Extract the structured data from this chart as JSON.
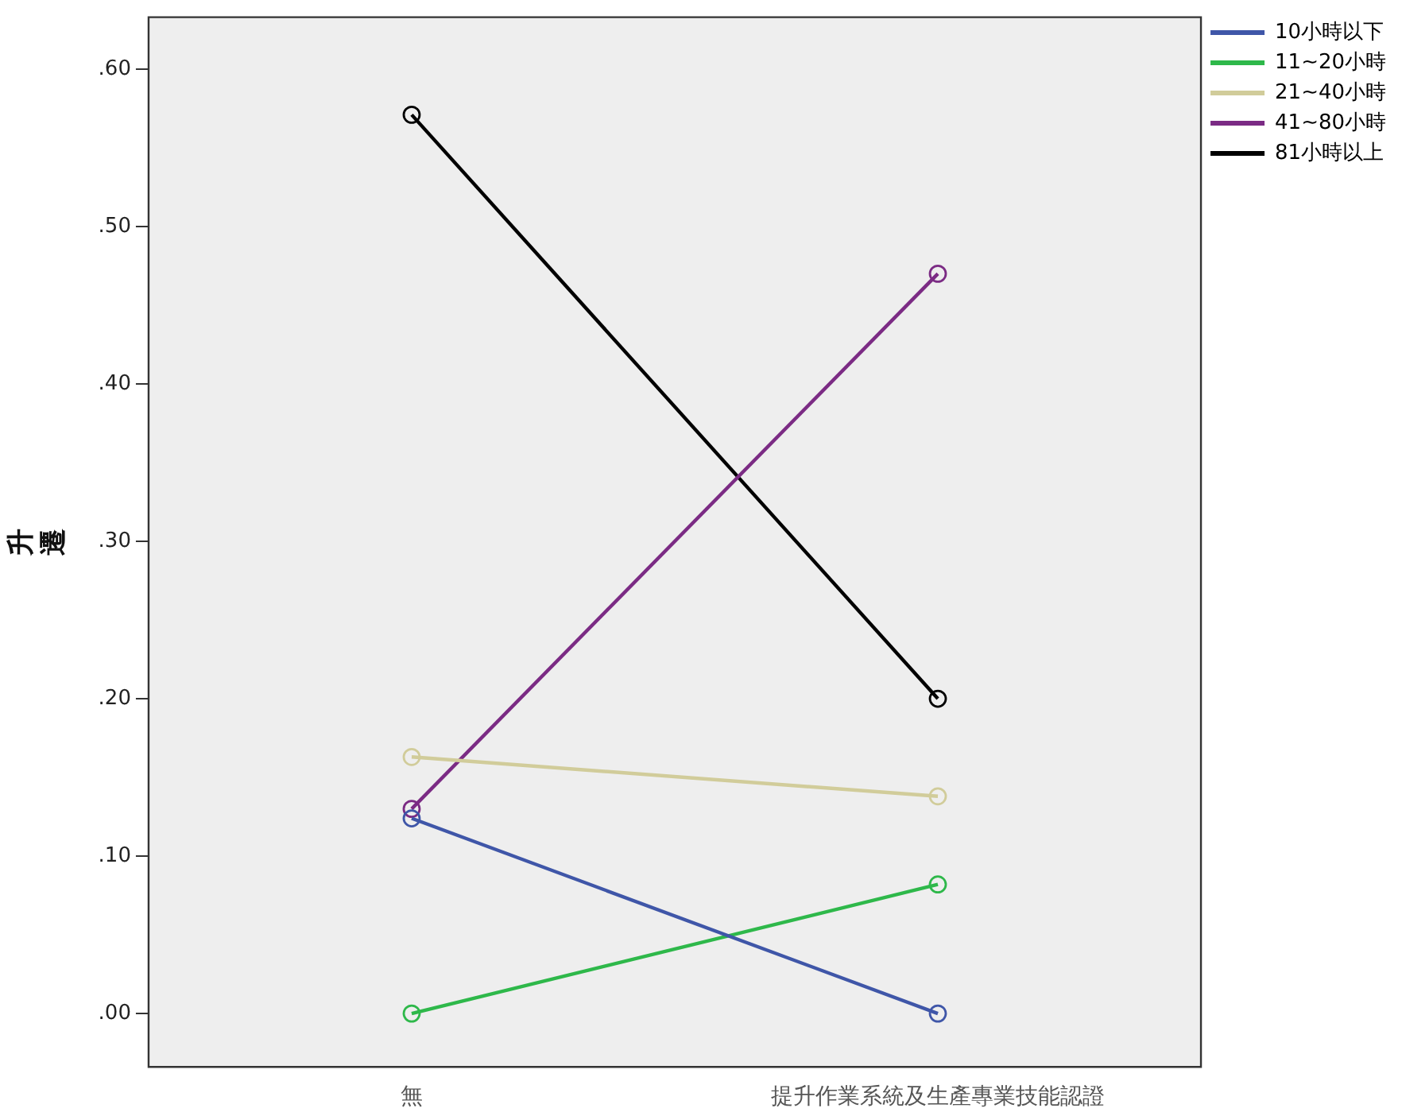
{
  "chart_data": {
    "type": "line",
    "ylabel": "升遷",
    "categories": [
      "無",
      "提升作業系統及生產專業技能認證"
    ],
    "series": [
      {
        "name": "10小時以下",
        "color": "#3f56a8",
        "values": [
          0.124,
          0
        ]
      },
      {
        "name": "11~20小時",
        "color": "#2eb84a",
        "values": [
          0,
          0.082
        ]
      },
      {
        "name": "21~40小時",
        "color": "#d1cc9a",
        "values": [
          0.163,
          0.138
        ]
      },
      {
        "name": "41~80小時",
        "color": "#7b2b84",
        "values": [
          0.13,
          0.47
        ]
      },
      {
        "name": "81小時以上",
        "color": "#000000",
        "values": [
          0.571,
          0.2
        ]
      }
    ],
    "ylim": [
      -0.034,
      0.633
    ],
    "yticks": [
      {
        "value": 0,
        "label": ".00"
      },
      {
        "value": 0.1,
        "label": ".10"
      },
      {
        "value": 0.2,
        "label": ".20"
      },
      {
        "value": 0.3,
        "label": ".30"
      },
      {
        "value": 0.4,
        "label": ".40"
      },
      {
        "value": 0.5,
        "label": ".50"
      },
      {
        "value": 0.6,
        "label": ".60"
      }
    ],
    "grid": false,
    "legend": "top right",
    "marker": "circle",
    "line_style": "solid"
  }
}
